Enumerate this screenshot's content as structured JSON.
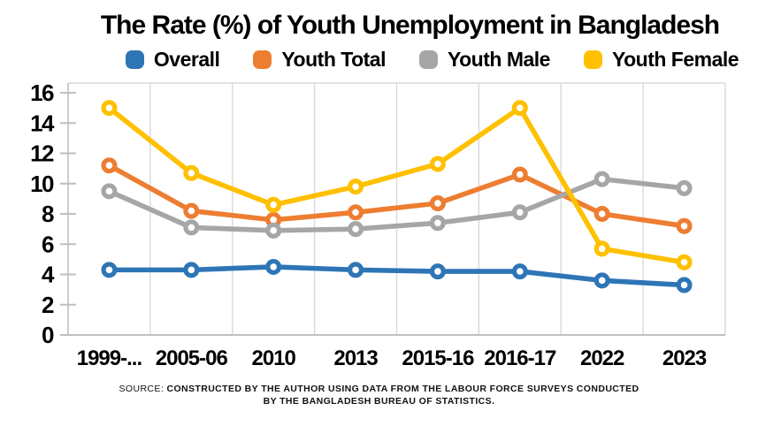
{
  "title": "The Rate (%) of Youth Unemployment in Bangladesh",
  "source": {
    "prefix": "SOURCE:",
    "line1": "CONSTRUCTED BY THE AUTHOR USING DATA FROM THE LABOUR FORCE SURVEYS CONDUCTED",
    "line2": "BY THE BANGLADESH BUREAU OF STATISTICS."
  },
  "colors": {
    "axis": "#BFBFBF",
    "gridline": "#D9D9D9",
    "marker_fill": "#FFFFFF",
    "text": "#000000"
  },
  "chart_data": {
    "type": "line",
    "title": "The Rate (%) of Youth Unemployment in Bangladesh",
    "xlabel": "",
    "ylabel": "",
    "ylim": [
      0,
      16
    ],
    "ytick_step": 2,
    "yticks": [
      0,
      2,
      4,
      6,
      8,
      10,
      12,
      14,
      16
    ],
    "grid": "vertical-only",
    "legend_position": "top",
    "marker": "circle-donut",
    "categories": [
      "1999-...",
      "2005-06",
      "2010",
      "2013",
      "2015-16",
      "2016-17",
      "2022",
      "2023"
    ],
    "series": [
      {
        "name": "Overall",
        "color": "#2E75B6",
        "values": [
          4.3,
          4.3,
          4.5,
          4.3,
          4.2,
          4.2,
          3.6,
          3.3
        ]
      },
      {
        "name": "Youth Total",
        "color": "#ED7D31",
        "values": [
          11.2,
          8.2,
          7.6,
          8.1,
          8.7,
          10.6,
          8.0,
          7.2
        ]
      },
      {
        "name": "Youth Male",
        "color": "#A6A6A6",
        "values": [
          9.5,
          7.1,
          6.9,
          7.0,
          7.4,
          8.1,
          10.3,
          9.7
        ]
      },
      {
        "name": "Youth Female",
        "color": "#FFC000",
        "values": [
          15.0,
          10.7,
          8.6,
          9.8,
          11.3,
          15.0,
          5.7,
          4.8
        ]
      }
    ]
  }
}
